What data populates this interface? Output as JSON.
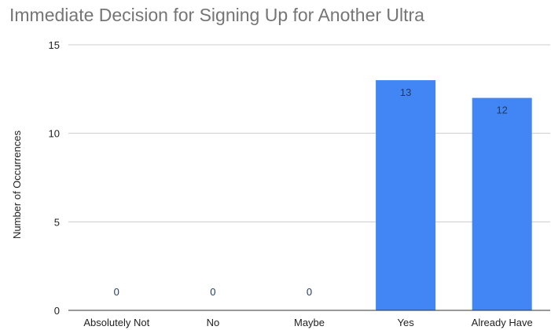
{
  "chart_data": {
    "type": "bar",
    "title": "Immediate Decision for Signing Up for Another Ultra",
    "xlabel": "",
    "ylabel": "Number of Occurrences",
    "categories": [
      "Absolutely Not",
      "No",
      "Maybe",
      "Yes",
      "Already Have"
    ],
    "values": [
      0,
      0,
      0,
      13,
      12
    ],
    "data_labels": [
      "0",
      "0",
      "0",
      "13",
      "12"
    ],
    "ylim": [
      0,
      15
    ],
    "yticks": [
      0,
      5,
      10,
      15
    ],
    "grid": true,
    "legend": "none",
    "bar_color": "#4285f4"
  }
}
